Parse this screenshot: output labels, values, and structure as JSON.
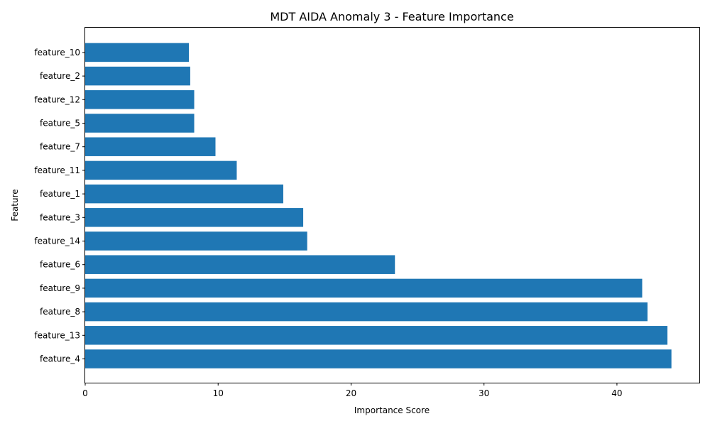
{
  "chart_data": {
    "type": "bar",
    "orientation": "horizontal",
    "title": "MDT AIDA Anomaly 3 - Feature Importance",
    "xlabel": "Importance Score",
    "ylabel": "Feature",
    "categories": [
      "feature_4",
      "feature_13",
      "feature_8",
      "feature_9",
      "feature_6",
      "feature_14",
      "feature_3",
      "feature_1",
      "feature_11",
      "feature_7",
      "feature_5",
      "feature_12",
      "feature_2",
      "feature_10"
    ],
    "values": [
      44.1,
      43.8,
      42.3,
      41.9,
      23.3,
      16.7,
      16.4,
      14.9,
      11.4,
      9.8,
      8.2,
      8.2,
      7.9,
      7.8
    ],
    "xlim": [
      0,
      46.2
    ],
    "xticks": [
      0,
      10,
      20,
      30,
      40
    ],
    "bar_color": "#1f77b4",
    "grid": false,
    "legend": "none"
  }
}
